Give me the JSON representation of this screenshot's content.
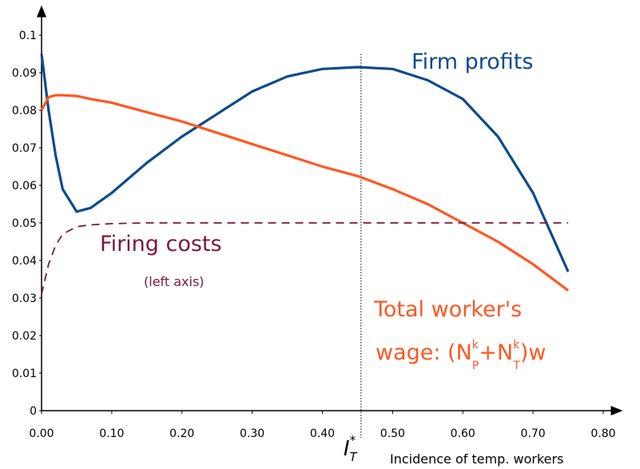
{
  "chart_data": {
    "type": "line",
    "x": [
      0,
      0.01,
      0.02,
      0.03,
      0.05,
      0.07,
      0.1,
      0.15,
      0.2,
      0.25,
      0.3,
      0.35,
      0.4,
      0.45,
      0.5,
      0.55,
      0.6,
      0.65,
      0.7,
      0.75
    ],
    "series": [
      {
        "name": "Firm profits",
        "color": "#0d4a8c",
        "dash": false,
        "values": [
          0.095,
          0.08,
          0.068,
          0.059,
          0.053,
          0.054,
          0.058,
          0.066,
          0.073,
          0.079,
          0.085,
          0.089,
          0.091,
          0.0915,
          0.091,
          0.088,
          0.083,
          0.073,
          0.058,
          0.037
        ]
      },
      {
        "name": "Total worker's",
        "color": "#ff5722",
        "dash": false,
        "values": [
          0.08,
          0.0835,
          0.084,
          0.084,
          0.0838,
          0.083,
          0.082,
          0.0795,
          0.077,
          0.074,
          0.071,
          0.068,
          0.065,
          0.0625,
          0.059,
          0.055,
          0.05,
          0.045,
          0.039,
          0.032
        ]
      },
      {
        "name": "Firing costs",
        "color": "#7b1838",
        "dash": true,
        "values": [
          0.031,
          0.039,
          0.044,
          0.047,
          0.049,
          0.0495,
          0.0498,
          0.05,
          0.05,
          0.05,
          0.05,
          0.05,
          0.05,
          0.05,
          0.05,
          0.05,
          0.05,
          0.05,
          0.05,
          0.05
        ]
      }
    ],
    "xlim": [
      0,
      0.8
    ],
    "ylim": [
      0,
      0.1
    ],
    "xticks": [
      {
        "value": 0,
        "label": "0.00"
      },
      {
        "value": 0.1,
        "label": "0.10"
      },
      {
        "value": 0.2,
        "label": "0.20"
      },
      {
        "value": 0.3,
        "label": "0.30"
      },
      {
        "value": 0.4,
        "label": "0.40"
      },
      {
        "value": 0.5,
        "label": "0.50"
      },
      {
        "value": 0.6,
        "label": "0.60"
      },
      {
        "value": 0.7,
        "label": "0.70"
      },
      {
        "value": 0.8,
        "label": "0.80"
      }
    ],
    "yticks": [
      0,
      0.01,
      0.02,
      0.03,
      0.04,
      0.05,
      0.06,
      0.07,
      0.08,
      0.09,
      0.1
    ],
    "x_label": "Incidence of temp. workers",
    "vline": {
      "value": 0.455,
      "label": [
        "I",
        "T",
        "*"
      ]
    },
    "annotations": {
      "left_axis": "(left axis)",
      "wage": [
        "wage: (N",
        "k",
        "P",
        "+N",
        "k",
        "T",
        ")w"
      ]
    }
  }
}
